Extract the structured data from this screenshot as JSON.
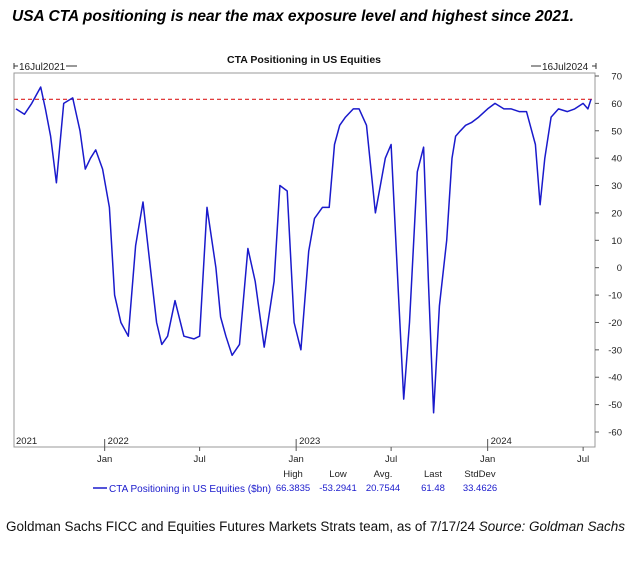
{
  "headline": "USA CTA positioning is near the max exposure level and highest since 2021.",
  "source": {
    "text": "Goldman Sachs FICC and Equities Futures Markets Strats team, as of 7/17/24 ",
    "italic": "Source: Goldman Sachs"
  },
  "chart_data": {
    "type": "line",
    "title": "CTA Positioning in US Equities",
    "start_label": "16Jul2021",
    "end_label": "16Jul2024",
    "ylim": [
      -60,
      70
    ],
    "yticks": [
      70,
      60,
      50,
      40,
      30,
      20,
      10,
      0,
      -10,
      -20,
      -30,
      -40,
      -50,
      -60
    ],
    "y_tick_labels": [
      "70",
      "60",
      "50",
      "40",
      "30",
      "20",
      "10",
      "0",
      "-10",
      "-20",
      "-30",
      "-40",
      "-50",
      "-60"
    ],
    "year_labels": [
      "2021",
      "2022",
      "2023",
      "2024"
    ],
    "month_labels": [
      "Jan",
      "Jul",
      "Jan",
      "Jul",
      "Jan",
      "Jul"
    ],
    "reference_line": {
      "value": 61.48,
      "style": "dashed",
      "color": "#dd2222"
    },
    "grid": false,
    "legend": {
      "placement": "bottom",
      "label": "CTA Positioning in US Equities ($bn)"
    },
    "stats": {
      "headers": [
        "High",
        "Low",
        "Avg.",
        "Last",
        "StdDev"
      ],
      "values": [
        "66.3835",
        "-53.2941",
        "20.7544",
        "61.48",
        "33.4626"
      ]
    },
    "series": [
      {
        "name": "CTA Positioning in US Equities ($bn)",
        "color": "#1a1acc",
        "x": [
          "2021-07-16",
          "2021-08-01",
          "2021-08-15",
          "2021-09-01",
          "2021-09-10",
          "2021-09-20",
          "2021-10-01",
          "2021-10-15",
          "2021-11-01",
          "2021-11-15",
          "2021-11-25",
          "2021-12-05",
          "2021-12-15",
          "2021-12-28",
          "2022-01-10",
          "2022-01-20",
          "2022-02-01",
          "2022-02-15",
          "2022-03-01",
          "2022-03-15",
          "2022-04-01",
          "2022-04-10",
          "2022-04-20",
          "2022-05-01",
          "2022-05-15",
          "2022-06-01",
          "2022-06-20",
          "2022-07-01",
          "2022-07-15",
          "2022-08-01",
          "2022-08-10",
          "2022-08-20",
          "2022-09-01",
          "2022-09-15",
          "2022-10-01",
          "2022-10-15",
          "2022-11-01",
          "2022-11-20",
          "2022-12-01",
          "2022-12-15",
          "2022-12-28",
          "2023-01-10",
          "2023-01-25",
          "2023-02-05",
          "2023-02-20",
          "2023-03-05",
          "2023-03-15",
          "2023-03-25",
          "2023-04-05",
          "2023-04-20",
          "2023-05-01",
          "2023-05-15",
          "2023-06-01",
          "2023-06-20",
          "2023-07-01",
          "2023-07-15",
          "2023-07-25",
          "2023-08-05",
          "2023-08-20",
          "2023-09-01",
          "2023-09-10",
          "2023-09-20",
          "2023-10-01",
          "2023-10-15",
          "2023-10-25",
          "2023-11-01",
          "2023-11-10",
          "2023-11-20",
          "2023-12-01",
          "2023-12-15",
          "2024-01-01",
          "2024-01-15",
          "2024-02-01",
          "2024-02-15",
          "2024-03-01",
          "2024-03-15",
          "2024-04-01",
          "2024-04-10",
          "2024-04-19",
          "2024-05-01",
          "2024-05-15",
          "2024-06-01",
          "2024-06-15",
          "2024-07-01",
          "2024-07-10",
          "2024-07-16"
        ],
        "y": [
          58,
          56,
          60,
          66,
          58,
          48,
          31,
          60,
          62,
          50,
          36,
          40,
          43,
          36,
          22,
          -10,
          -20,
          -25,
          8,
          24,
          -5,
          -20,
          -28,
          -25,
          -12,
          -25,
          -26,
          -25,
          22,
          0,
          -18,
          -25,
          -32,
          -28,
          7,
          -5,
          -29,
          -5,
          30,
          28,
          -20,
          -30,
          6,
          18,
          22,
          22,
          45,
          52,
          55,
          58,
          58,
          52,
          20,
          40,
          45,
          -10,
          -48,
          -20,
          35,
          44,
          -5,
          -53,
          -14,
          10,
          40,
          48,
          50,
          52,
          53,
          55,
          58,
          60,
          58,
          58,
          57,
          57,
          45,
          23,
          40,
          55,
          58,
          57,
          58,
          60,
          58,
          61.48
        ]
      }
    ]
  }
}
